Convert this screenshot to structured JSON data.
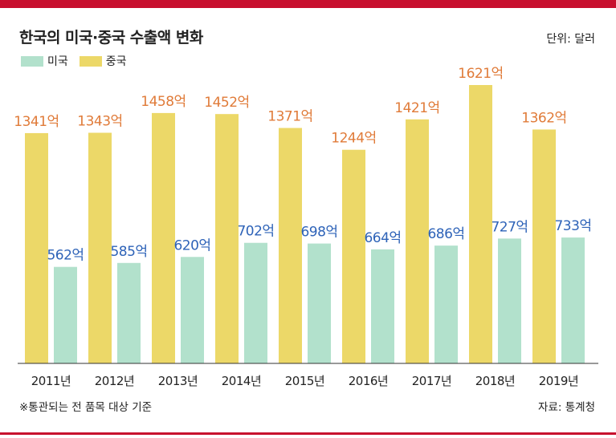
{
  "title": "한국의 미국·중국 수출액 변화",
  "unit": "단위: 달러",
  "footnote": "※통관되는 전 품목 대상 기준",
  "source": "자료: 통계청",
  "colors": {
    "china": "#ecd868",
    "us": "#b2e1cc",
    "china_label": "#e07b39",
    "us_label": "#2e63b8",
    "accent": "#c8102e"
  },
  "chart_data": {
    "type": "bar",
    "categories": [
      "2011년",
      "2012년",
      "2013년",
      "2014년",
      "2015년",
      "2016년",
      "2017년",
      "2018년",
      "2019년"
    ],
    "series": [
      {
        "name": "미국",
        "values": [
          562,
          585,
          620,
          702,
          698,
          664,
          686,
          727,
          733
        ],
        "labels": [
          "562억",
          "585억",
          "620억",
          "702억",
          "698억",
          "664억",
          "686억",
          "727억",
          "733억"
        ]
      },
      {
        "name": "중국",
        "values": [
          1341,
          1343,
          1458,
          1452,
          1371,
          1244,
          1421,
          1621,
          1362
        ],
        "labels": [
          "1341억",
          "1343억",
          "1458억",
          "1452억",
          "1371억",
          "1244억",
          "1421억",
          "1621억",
          "1362억"
        ]
      }
    ],
    "ylim": [
      0,
      1621
    ],
    "legend": "top-left",
    "grid": false
  }
}
